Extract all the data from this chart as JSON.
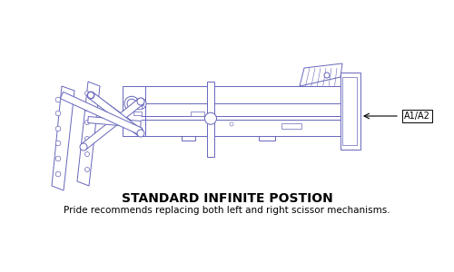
{
  "title": "STANDARD INFINITE POSTION",
  "subtitle": "Pride recommends replacing both left and right scissor mechanisms.",
  "label_a1a2": "A1/A2",
  "line_color": "#6666bb",
  "bg_color": "#ffffff",
  "title_fontsize": 10,
  "subtitle_fontsize": 7.5,
  "label_fontsize": 7,
  "fig_w": 5.0,
  "fig_h": 3.0,
  "dpi": 100
}
